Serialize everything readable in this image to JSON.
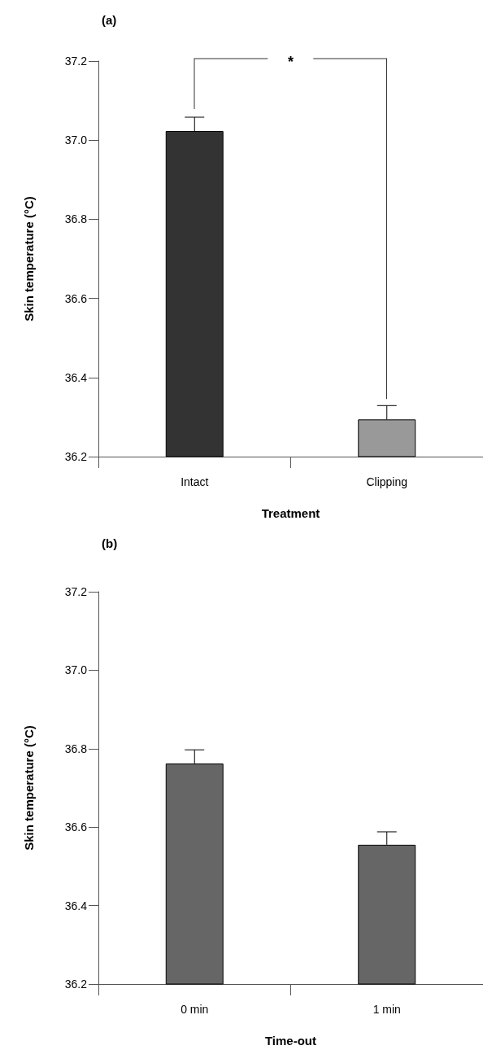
{
  "chart_data": [
    {
      "type": "bar",
      "title": "(a)",
      "xlabel": "Treatment",
      "ylabel": "Skin temperature (°C)",
      "categories": [
        "Intact",
        "Clipping"
      ],
      "values": [
        37.023,
        36.294
      ],
      "colors": [
        "#333333",
        "#999999"
      ],
      "errors": [
        [
          37.023,
          37.058
        ],
        [
          36.294,
          36.329
        ]
      ],
      "ylim": [
        36.2,
        37.2
      ],
      "yticks": [
        {
          "value": 36.2,
          "label": "36.2"
        },
        {
          "value": 36.4,
          "label": "36.4"
        },
        {
          "value": 36.6,
          "label": "36.6"
        },
        {
          "value": 36.8,
          "label": "36.8"
        },
        {
          "value": 37,
          "label": "37.0"
        },
        {
          "value": 37.2,
          "label": "37.2"
        }
      ],
      "annotations": [
        "*"
      ]
    },
    {
      "type": "bar",
      "title": "(b)",
      "xlabel": "Time-out",
      "ylabel": "Skin temperature (°C)",
      "categories": [
        "0 min",
        "1 min"
      ],
      "values": [
        36.762,
        36.555
      ],
      "colors": [
        "#666666",
        "#666666"
      ],
      "errors": [
        [
          36.762,
          36.797
        ],
        [
          36.555,
          36.588
        ]
      ],
      "ylim": [
        36.2,
        37.2
      ],
      "yticks": [
        {
          "value": 36.2,
          "label": "36.2"
        },
        {
          "value": 36.4,
          "label": "36.4"
        },
        {
          "value": 36.6,
          "label": "36.6"
        },
        {
          "value": 36.8,
          "label": "36.8"
        },
        {
          "value": 37,
          "label": "37.0"
        },
        {
          "value": 37.2,
          "label": "37.2"
        }
      ]
    }
  ]
}
